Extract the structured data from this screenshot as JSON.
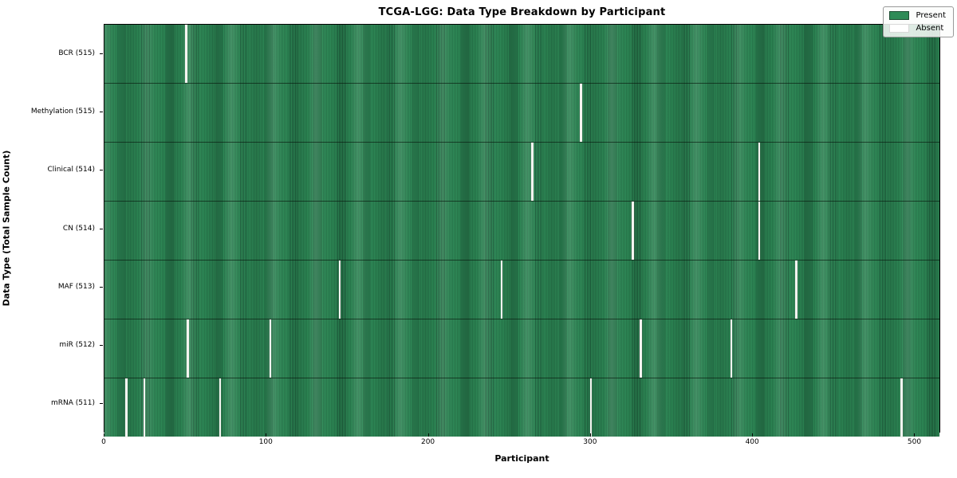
{
  "figure": {
    "title": "TCGA-LGG: Data Type Breakdown by Participant",
    "xlabel": "Participant",
    "ylabel": "Data Type (Total Sample Count)"
  },
  "chart_data": {
    "type": "heatmap",
    "title": "TCGA-LGG: Data Type Breakdown by Participant",
    "xlabel": "Participant",
    "ylabel": "Data Type (Total Sample Count)",
    "n_participants": 516,
    "x_range": [
      0,
      516
    ],
    "x_ticks": [
      0,
      100,
      200,
      300,
      400,
      500
    ],
    "grid": false,
    "rows": [
      {
        "label": "BCR (515)",
        "data_type": "BCR",
        "present_count": 515,
        "absent_participants": [
          50
        ]
      },
      {
        "label": "Methylation (515)",
        "data_type": "Methylation",
        "present_count": 515,
        "absent_participants": [
          294
        ]
      },
      {
        "label": "Clinical (514)",
        "data_type": "Clinical",
        "present_count": 514,
        "absent_participants": [
          264,
          404
        ]
      },
      {
        "label": "CN (514)",
        "data_type": "CN",
        "present_count": 514,
        "absent_participants": [
          326,
          404
        ]
      },
      {
        "label": "MAF (513)",
        "data_type": "MAF",
        "present_count": 513,
        "absent_participants": [
          145,
          245,
          427
        ]
      },
      {
        "label": "miR (512)",
        "data_type": "miR",
        "present_count": 512,
        "absent_participants": [
          51,
          102,
          331,
          387
        ]
      },
      {
        "label": "mRNA (511)",
        "data_type": "mRNA",
        "present_count": 511,
        "absent_participants": [
          13,
          24,
          71,
          300,
          492
        ]
      }
    ],
    "legend": {
      "position": "upper right",
      "entries": [
        {
          "label": "Present",
          "color": "#2e8b57"
        },
        {
          "label": "Absent",
          "color": "#ffffff"
        }
      ]
    },
    "colors": {
      "present": "#2e8b57",
      "present_edge": "#1d5a3a",
      "absent_line": "#f4f4f0",
      "absent_swatch_border": "#d8d8d8",
      "present_swatch_border": "#1d4d33",
      "axis": "#000000"
    }
  }
}
